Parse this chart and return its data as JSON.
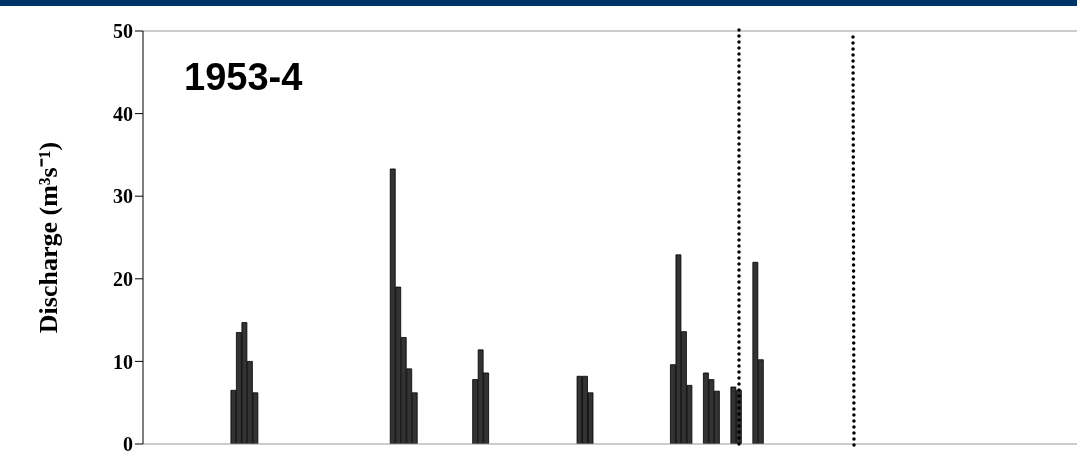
{
  "chart_data": {
    "type": "bar",
    "title": "1953-4",
    "ylabel": "Discharge (m³s⁻¹)",
    "categories": [
      null,
      null,
      null,
      null,
      null,
      null,
      null,
      null,
      null,
      null,
      null,
      null,
      null,
      null,
      null,
      null,
      null,
      null,
      null,
      null,
      null,
      null,
      null,
      null,
      null,
      null,
      null,
      null,
      null,
      null,
      null,
      null,
      null,
      null,
      null,
      null,
      null,
      null,
      null,
      null,
      null,
      null,
      null,
      null,
      null,
      null,
      null,
      null,
      null,
      null,
      null,
      null,
      null,
      null,
      null,
      null,
      null,
      null,
      null,
      null,
      null,
      null,
      null,
      null,
      null,
      null,
      null,
      null,
      null,
      null,
      null,
      null,
      null,
      null,
      null,
      null,
      null,
      null,
      null,
      null,
      null,
      null,
      null,
      null,
      null,
      null,
      null,
      null,
      null,
      null,
      null,
      null,
      null,
      null,
      null,
      null,
      null,
      null,
      null,
      null,
      null,
      null,
      null,
      null,
      null,
      null,
      null,
      null,
      null,
      null,
      null,
      null,
      null,
      null,
      null,
      null,
      null,
      null,
      null,
      null,
      null,
      null,
      null,
      null,
      null,
      null,
      null,
      null,
      null,
      null,
      null,
      null,
      null,
      null,
      null,
      null,
      null,
      null,
      null,
      null,
      null,
      null,
      null,
      null,
      null,
      null,
      null,
      null,
      null,
      null,
      null,
      null,
      null,
      null,
      null,
      null,
      null,
      null,
      null,
      null,
      null,
      null,
      null,
      null,
      null,
      null,
      null,
      null,
      null,
      null
    ],
    "values": [
      null,
      null,
      null,
      null,
      null,
      null,
      null,
      null,
      null,
      null,
      null,
      null,
      null,
      null,
      null,
      null,
      6.5,
      13.5,
      14.7,
      10,
      6.2,
      null,
      null,
      null,
      null,
      null,
      null,
      null,
      null,
      null,
      null,
      null,
      null,
      null,
      null,
      null,
      null,
      null,
      null,
      null,
      null,
      null,
      null,
      null,
      null,
      33.3,
      19,
      12.9,
      9.1,
      6.2,
      null,
      null,
      null,
      null,
      null,
      null,
      null,
      null,
      null,
      null,
      7.8,
      11.4,
      8.6,
      null,
      null,
      null,
      null,
      null,
      null,
      null,
      null,
      null,
      null,
      null,
      null,
      null,
      null,
      null,
      null,
      8.2,
      8.2,
      6.2,
      null,
      null,
      null,
      null,
      null,
      null,
      null,
      null,
      null,
      null,
      null,
      null,
      null,
      null,
      9.6,
      22.9,
      13.6,
      7.1,
      null,
      null,
      8.6,
      7.8,
      6.4,
      null,
      null,
      6.9,
      6.5,
      null,
      null,
      22,
      10.2,
      null,
      null,
      null,
      null,
      null,
      null,
      null,
      null,
      null,
      null,
      null,
      null,
      null,
      null,
      null,
      null,
      null,
      null,
      null,
      null,
      null,
      null,
      null,
      null,
      null,
      null,
      null,
      null,
      null,
      null,
      null,
      null,
      null,
      null,
      null,
      null,
      null,
      null,
      null,
      null,
      null,
      null,
      null,
      null,
      null,
      null,
      null,
      null,
      null,
      null,
      null,
      null,
      null,
      null,
      null,
      null,
      null
    ],
    "color": "#333333",
    "ylim": [
      0,
      50
    ],
    "yticks": [
      0,
      10,
      20,
      30,
      40,
      50
    ],
    "tick_labels": "y",
    "grid": false,
    "legend": false
  }
}
